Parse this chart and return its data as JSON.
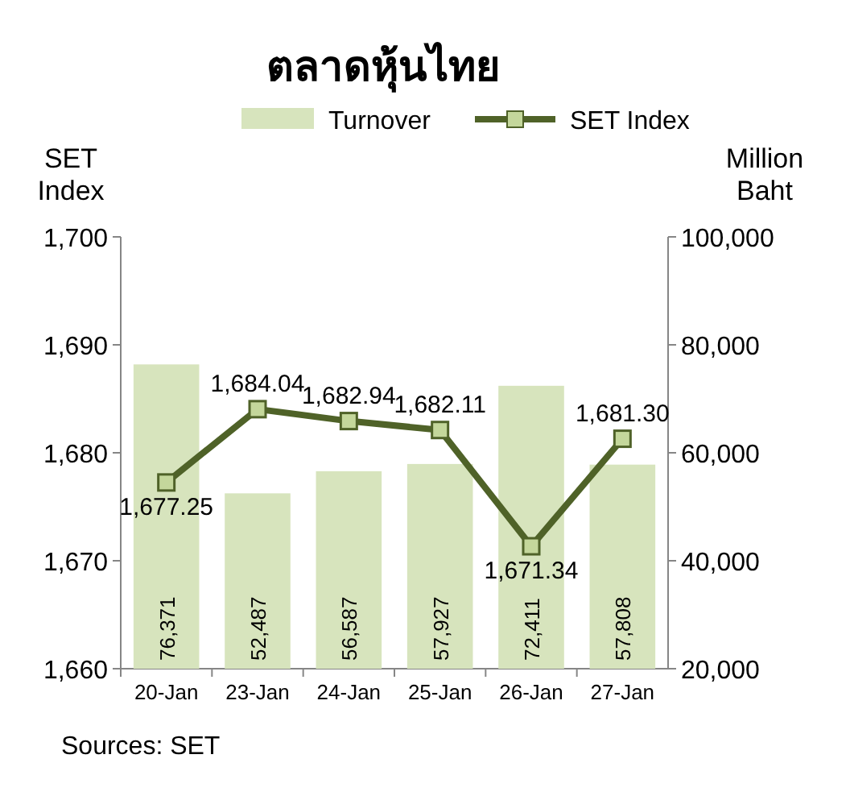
{
  "chart_data": {
    "type": "bar",
    "title": "ตลาดหุ้นไทย",
    "ylabel": "SET Index",
    "y2label": "Million Baht",
    "categories": [
      "20-Jan",
      "23-Jan",
      "24-Jan",
      "25-Jan",
      "26-Jan",
      "27-Jan"
    ],
    "series": [
      {
        "name": "Turnover",
        "axis": "y2",
        "color": "#d7e4bd",
        "values": [
          76371,
          52487,
          56587,
          57927,
          72411,
          57808
        ],
        "value_labels": [
          "76,371",
          "52,487",
          "56,587",
          "57,927",
          "72,411",
          "57,808"
        ]
      },
      {
        "name": "SET Index",
        "type": "line",
        "color": "#4f6228",
        "values": [
          1677.25,
          1684.04,
          1682.94,
          1682.11,
          1671.34,
          1681.3
        ],
        "value_labels": [
          "1,677.25",
          "1,684.04",
          "1,682.94",
          "1,682.11",
          "1,671.34",
          "1,681.30"
        ]
      }
    ],
    "ylim": [
      1660,
      1700
    ],
    "yticks": [
      {
        "value": 1660,
        "label": "1,660"
      },
      {
        "value": 1670,
        "label": "1,670"
      },
      {
        "value": 1680,
        "label": "1,680"
      },
      {
        "value": 1690,
        "label": "1,690"
      },
      {
        "value": 1700,
        "label": "1,700"
      }
    ],
    "y2lim": [
      20000,
      100000
    ],
    "y2ticks": [
      {
        "value": 20000,
        "label": "20,000"
      },
      {
        "value": 40000,
        "label": "40,000"
      },
      {
        "value": 60000,
        "label": "60,000"
      },
      {
        "value": 80000,
        "label": "80,000"
      },
      {
        "value": 100000,
        "label": "100,000"
      }
    ],
    "legend": "top",
    "marker": "square",
    "grid": false,
    "annotations": [
      "Sources: SET"
    ]
  }
}
